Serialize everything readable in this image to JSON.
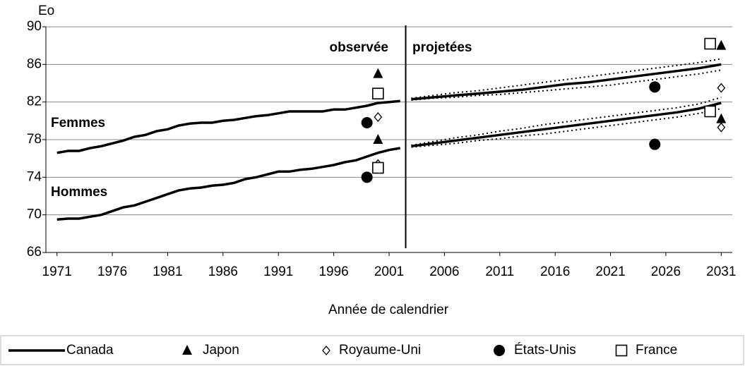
{
  "chart_data": {
    "type": "line",
    "y_label": "Eo",
    "x_label": "Année de calendrier",
    "annotations": [
      "observée",
      "projetées",
      "Femmes",
      "Hommes"
    ],
    "xlim": [
      1970,
      2032
    ],
    "xticks": [
      1971,
      1976,
      1981,
      1986,
      1991,
      1996,
      2001,
      2006,
      2011,
      2016,
      2021,
      2026,
      2031
    ],
    "ylim": [
      66,
      90
    ],
    "yticks": [
      66,
      70,
      74,
      78,
      82,
      86,
      90
    ],
    "grid": true,
    "canada": {
      "name": "Canada",
      "color": "#000000",
      "lines": [
        {
          "x": [
            1971,
            1972,
            1973,
            1974,
            1975,
            1976,
            1977,
            1978,
            1979,
            1980,
            1981,
            1982,
            1983,
            1984,
            1985,
            1986,
            1987,
            1988,
            1989,
            1990,
            1991,
            1992,
            1993,
            1994,
            1995,
            1996,
            1997,
            1998,
            1999,
            2000,
            2001,
            2002
          ],
          "values": [
            76.6,
            76.8,
            76.8,
            77.1,
            77.3,
            77.6,
            77.9,
            78.3,
            78.5,
            78.9,
            79.1,
            79.5,
            79.7,
            79.8,
            79.8,
            80.0,
            80.1,
            80.3,
            80.5,
            80.6,
            80.8,
            81.0,
            81.0,
            81.0,
            81.0,
            81.2,
            81.2,
            81.4,
            81.6,
            81.9,
            82.0,
            82.1
          ]
        },
        {
          "x": [
            1971,
            1972,
            1973,
            1974,
            1975,
            1976,
            1977,
            1978,
            1979,
            1980,
            1981,
            1982,
            1983,
            1984,
            1985,
            1986,
            1987,
            1988,
            1989,
            1990,
            1991,
            1992,
            1993,
            1994,
            1995,
            1996,
            1997,
            1998,
            1999,
            2000,
            2001,
            2002
          ],
          "values": [
            69.5,
            69.6,
            69.6,
            69.8,
            70.0,
            70.4,
            70.8,
            71.0,
            71.4,
            71.8,
            72.2,
            72.6,
            72.8,
            72.9,
            73.1,
            73.2,
            73.4,
            73.8,
            74.0,
            74.3,
            74.6,
            74.6,
            74.8,
            74.9,
            75.1,
            75.3,
            75.6,
            75.8,
            76.2,
            76.6,
            76.9,
            77.1
          ]
        },
        {
          "x": [
            2003,
            2005,
            2007,
            2009,
            2011,
            2013,
            2015,
            2017,
            2019,
            2021,
            2023,
            2025,
            2027,
            2029,
            2031
          ],
          "values": [
            82.3,
            82.5,
            82.7,
            82.9,
            83.1,
            83.3,
            83.6,
            83.9,
            84.1,
            84.4,
            84.7,
            85.0,
            85.3,
            85.6,
            86.0
          ]
        },
        {
          "x": [
            2003,
            2005,
            2007,
            2009,
            2011,
            2013,
            2015,
            2017,
            2019,
            2021,
            2023,
            2025,
            2027,
            2029,
            2031
          ],
          "values": [
            77.3,
            77.6,
            77.9,
            78.2,
            78.5,
            78.8,
            79.1,
            79.4,
            79.7,
            80.0,
            80.3,
            80.6,
            80.9,
            81.3,
            81.9
          ]
        }
      ],
      "bounds": [
        {
          "x": [
            2003,
            2005,
            2007,
            2009,
            2011,
            2013,
            2015,
            2017,
            2019,
            2021,
            2023,
            2025,
            2027,
            2029,
            2031
          ],
          "values": [
            82.4,
            82.7,
            83.0,
            83.2,
            83.5,
            83.8,
            84.1,
            84.4,
            84.7,
            85.0,
            85.3,
            85.6,
            85.9,
            86.2,
            86.6
          ]
        },
        {
          "x": [
            2003,
            2005,
            2007,
            2009,
            2011,
            2013,
            2015,
            2017,
            2019,
            2021,
            2023,
            2025,
            2027,
            2029,
            2031
          ],
          "values": [
            82.2,
            82.4,
            82.5,
            82.7,
            82.8,
            83.0,
            83.2,
            83.4,
            83.6,
            83.8,
            84.1,
            84.4,
            84.7,
            85.0,
            85.4
          ]
        },
        {
          "x": [
            2003,
            2005,
            2007,
            2009,
            2011,
            2013,
            2015,
            2017,
            2019,
            2021,
            2023,
            2025,
            2027,
            2029,
            2031
          ],
          "values": [
            77.4,
            77.8,
            78.2,
            78.5,
            78.9,
            79.2,
            79.6,
            79.9,
            80.2,
            80.5,
            80.8,
            81.1,
            81.4,
            81.8,
            82.5
          ]
        },
        {
          "x": [
            2003,
            2005,
            2007,
            2009,
            2011,
            2013,
            2015,
            2017,
            2019,
            2021,
            2023,
            2025,
            2027,
            2029,
            2031
          ],
          "values": [
            77.2,
            77.4,
            77.6,
            77.9,
            78.1,
            78.4,
            78.6,
            78.9,
            79.2,
            79.5,
            79.8,
            80.1,
            80.4,
            80.8,
            81.3
          ]
        }
      ]
    },
    "markers": [
      {
        "name": "Japon",
        "marker": "triangle",
        "x": [
          2000,
          2000,
          2031,
          2031
        ],
        "values": [
          85.0,
          78.0,
          88.0,
          80.2
        ]
      },
      {
        "name": "Royaume-Uni",
        "marker": "diamond",
        "x": [
          2000,
          2000,
          2031,
          2031
        ],
        "values": [
          80.4,
          75.4,
          83.5,
          79.3
        ]
      },
      {
        "name": "États-Unis",
        "marker": "circle",
        "x": [
          1999,
          1999,
          2025,
          2025
        ],
        "values": [
          79.8,
          74.0,
          83.6,
          77.5
        ]
      },
      {
        "name": "France",
        "marker": "square",
        "x": [
          2000,
          2000,
          2030,
          2030
        ],
        "values": [
          82.9,
          75.0,
          88.2,
          81.0
        ]
      }
    ]
  }
}
